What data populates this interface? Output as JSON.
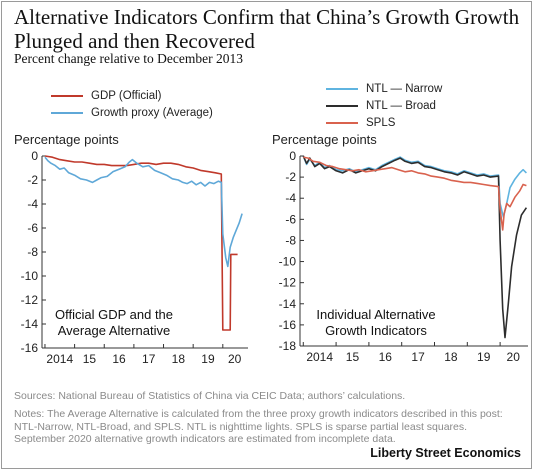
{
  "title": "Alternative Indicators Confirm that China’s Growth Growth Plunged and then Recovered",
  "subtitle": "Percent change relative to December 2013",
  "sources": "Sources: National Bureau of Statistics of China via CEIC Data; authors’ calculations.",
  "notes": "Notes: The Average Alternative is calculated from the three proxy growth indicators described in this post: NTL-Narrow, NTL-Broad, and SPLS. NTL is nighttime lights. SPLS is sparse partial least squares. September 2020 alternative growth indicators are estimated from incomplete data.",
  "brand": "Liberty Street Economics",
  "colors": {
    "gdp": "#c0392b",
    "proxy": "#5fa8d8",
    "ntl_narrow": "#5fb4e0",
    "ntl_broad": "#2d2d2d",
    "spls": "#d9624e"
  },
  "chart_data": [
    {
      "type": "line",
      "ylabel": "Percentage points",
      "annotation": [
        "Official GDP and the",
        "Average Alternative"
      ],
      "ylim": [
        -16,
        0
      ],
      "yticks": [
        0,
        -2,
        -4,
        -6,
        -8,
        -10,
        -12,
        -14,
        -16
      ],
      "xlim": [
        2013.9,
        2020.85
      ],
      "xticks": [
        {
          "label": "2014",
          "x": 2014.5
        },
        {
          "label": "15",
          "x": 2015.5
        },
        {
          "label": "16",
          "x": 2016.5
        },
        {
          "label": "17",
          "x": 2017.5
        },
        {
          "label": "18",
          "x": 2018.5
        },
        {
          "label": "19",
          "x": 2019.5
        },
        {
          "label": "20",
          "x": 2020.4
        }
      ],
      "grid": false,
      "legend_position": "top",
      "series": [
        {
          "name": "GDP (Official)",
          "color_key": "gdp",
          "points": [
            [
              2014.0,
              0.0
            ],
            [
              2014.25,
              -0.1
            ],
            [
              2014.5,
              -0.3
            ],
            [
              2014.75,
              -0.4
            ],
            [
              2015.0,
              -0.5
            ],
            [
              2015.25,
              -0.5
            ],
            [
              2015.5,
              -0.6
            ],
            [
              2015.75,
              -0.7
            ],
            [
              2016.0,
              -0.7
            ],
            [
              2016.25,
              -0.8
            ],
            [
              2016.5,
              -0.8
            ],
            [
              2016.75,
              -0.8
            ],
            [
              2017.0,
              -0.7
            ],
            [
              2017.25,
              -0.6
            ],
            [
              2017.5,
              -0.6
            ],
            [
              2017.75,
              -0.7
            ],
            [
              2018.0,
              -0.6
            ],
            [
              2018.25,
              -0.6
            ],
            [
              2018.5,
              -0.7
            ],
            [
              2018.75,
              -0.9
            ],
            [
              2019.0,
              -1.0
            ],
            [
              2019.25,
              -1.2
            ],
            [
              2019.5,
              -1.3
            ],
            [
              2019.75,
              -1.4
            ],
            [
              2019.95,
              -1.5
            ],
            [
              2020.0,
              -14.5
            ],
            [
              2020.25,
              -14.5
            ],
            [
              2020.27,
              -8.2
            ],
            [
              2020.5,
              -8.2
            ]
          ]
        },
        {
          "name": "Growth proxy (Average)",
          "color_key": "proxy",
          "points": [
            [
              2014.0,
              -0.1
            ],
            [
              2014.1,
              -0.4
            ],
            [
              2014.2,
              -0.6
            ],
            [
              2014.35,
              -0.8
            ],
            [
              2014.5,
              -1.1
            ],
            [
              2014.65,
              -1.0
            ],
            [
              2014.8,
              -1.4
            ],
            [
              2015.0,
              -1.6
            ],
            [
              2015.2,
              -1.9
            ],
            [
              2015.4,
              -2.0
            ],
            [
              2015.6,
              -2.2
            ],
            [
              2015.75,
              -2.0
            ],
            [
              2015.9,
              -1.8
            ],
            [
              2016.1,
              -1.7
            ],
            [
              2016.3,
              -1.3
            ],
            [
              2016.5,
              -1.1
            ],
            [
              2016.7,
              -0.9
            ],
            [
              2016.85,
              -0.5
            ],
            [
              2016.95,
              -0.3
            ],
            [
              2017.1,
              -0.6
            ],
            [
              2017.3,
              -0.9
            ],
            [
              2017.5,
              -0.8
            ],
            [
              2017.7,
              -1.2
            ],
            [
              2017.9,
              -1.4
            ],
            [
              2018.1,
              -1.6
            ],
            [
              2018.3,
              -1.9
            ],
            [
              2018.5,
              -2.0
            ],
            [
              2018.65,
              -2.2
            ],
            [
              2018.8,
              -2.3
            ],
            [
              2018.95,
              -2.1
            ],
            [
              2019.1,
              -2.4
            ],
            [
              2019.25,
              -2.2
            ],
            [
              2019.4,
              -2.5
            ],
            [
              2019.55,
              -2.2
            ],
            [
              2019.7,
              -2.3
            ],
            [
              2019.85,
              -2.1
            ],
            [
              2019.95,
              -2.2
            ],
            [
              2020.0,
              -6.5
            ],
            [
              2020.1,
              -8.5
            ],
            [
              2020.17,
              -9.2
            ],
            [
              2020.25,
              -7.6
            ],
            [
              2020.35,
              -6.8
            ],
            [
              2020.45,
              -6.2
            ],
            [
              2020.55,
              -5.6
            ],
            [
              2020.65,
              -4.8
            ]
          ]
        }
      ]
    },
    {
      "type": "line",
      "ylabel": "Percentage points",
      "annotation": [
        "Individual Alternative",
        "Growth Indicators"
      ],
      "ylim": [
        -18,
        0
      ],
      "yticks": [
        0,
        -2,
        -4,
        -6,
        -8,
        -10,
        -12,
        -14,
        -16,
        -18
      ],
      "xlim": [
        2013.9,
        2020.85
      ],
      "xticks": [
        {
          "label": "2014",
          "x": 2014.5
        },
        {
          "label": "15",
          "x": 2015.5
        },
        {
          "label": "16",
          "x": 2016.5
        },
        {
          "label": "17",
          "x": 2017.5
        },
        {
          "label": "18",
          "x": 2018.5
        },
        {
          "label": "19",
          "x": 2019.5
        },
        {
          "label": "20",
          "x": 2020.4
        }
      ],
      "grid": false,
      "legend_position": "top-right",
      "series": [
        {
          "name": "NTL — Narrow",
          "color_key": "ntl_narrow",
          "points": [
            [
              2014.0,
              0.0
            ],
            [
              2014.1,
              -0.8
            ],
            [
              2014.2,
              -0.3
            ],
            [
              2014.35,
              -0.9
            ],
            [
              2014.5,
              -0.6
            ],
            [
              2014.65,
              -1.1
            ],
            [
              2014.8,
              -0.9
            ],
            [
              2015.0,
              -1.3
            ],
            [
              2015.2,
              -1.4
            ],
            [
              2015.4,
              -1.2
            ],
            [
              2015.6,
              -1.5
            ],
            [
              2015.8,
              -1.3
            ],
            [
              2016.0,
              -1.1
            ],
            [
              2016.2,
              -1.3
            ],
            [
              2016.4,
              -0.9
            ],
            [
              2016.6,
              -0.6
            ],
            [
              2016.8,
              -0.3
            ],
            [
              2016.95,
              -0.1
            ],
            [
              2017.1,
              -0.4
            ],
            [
              2017.3,
              -0.6
            ],
            [
              2017.5,
              -0.5
            ],
            [
              2017.7,
              -0.9
            ],
            [
              2017.9,
              -1.0
            ],
            [
              2018.1,
              -1.2
            ],
            [
              2018.3,
              -1.4
            ],
            [
              2018.5,
              -1.5
            ],
            [
              2018.7,
              -1.7
            ],
            [
              2018.9,
              -1.4
            ],
            [
              2019.1,
              -1.6
            ],
            [
              2019.3,
              -1.8
            ],
            [
              2019.5,
              -1.7
            ],
            [
              2019.7,
              -1.9
            ],
            [
              2019.95,
              -1.8
            ],
            [
              2020.0,
              -4.5
            ],
            [
              2020.1,
              -5.8
            ],
            [
              2020.2,
              -4.5
            ],
            [
              2020.3,
              -3.0
            ],
            [
              2020.45,
              -2.2
            ],
            [
              2020.6,
              -1.6
            ],
            [
              2020.7,
              -1.3
            ],
            [
              2020.8,
              -1.6
            ]
          ]
        },
        {
          "name": "NTL — Broad",
          "color_key": "ntl_broad",
          "points": [
            [
              2014.0,
              0.0
            ],
            [
              2014.1,
              -0.7
            ],
            [
              2014.2,
              -0.2
            ],
            [
              2014.35,
              -1.0
            ],
            [
              2014.5,
              -0.7
            ],
            [
              2014.65,
              -1.2
            ],
            [
              2014.8,
              -1.0
            ],
            [
              2015.0,
              -1.4
            ],
            [
              2015.2,
              -1.6
            ],
            [
              2015.4,
              -1.3
            ],
            [
              2015.6,
              -1.6
            ],
            [
              2015.8,
              -1.4
            ],
            [
              2016.0,
              -1.2
            ],
            [
              2016.2,
              -1.4
            ],
            [
              2016.4,
              -1.0
            ],
            [
              2016.6,
              -0.7
            ],
            [
              2016.8,
              -0.4
            ],
            [
              2016.95,
              -0.2
            ],
            [
              2017.1,
              -0.5
            ],
            [
              2017.3,
              -0.7
            ],
            [
              2017.5,
              -0.6
            ],
            [
              2017.7,
              -1.0
            ],
            [
              2017.9,
              -1.1
            ],
            [
              2018.1,
              -1.3
            ],
            [
              2018.3,
              -1.5
            ],
            [
              2018.5,
              -1.6
            ],
            [
              2018.7,
              -1.8
            ],
            [
              2018.9,
              -1.5
            ],
            [
              2019.1,
              -1.7
            ],
            [
              2019.3,
              -1.9
            ],
            [
              2019.5,
              -1.8
            ],
            [
              2019.7,
              -2.0
            ],
            [
              2019.95,
              -1.9
            ],
            [
              2020.0,
              -8.0
            ],
            [
              2020.08,
              -14.5
            ],
            [
              2020.15,
              -17.2
            ],
            [
              2020.25,
              -14.0
            ],
            [
              2020.35,
              -10.5
            ],
            [
              2020.5,
              -7.5
            ],
            [
              2020.65,
              -5.6
            ],
            [
              2020.8,
              -4.9
            ]
          ]
        },
        {
          "name": "SPLS",
          "color_key": "spls",
          "points": [
            [
              2014.0,
              -0.1
            ],
            [
              2014.15,
              -0.2
            ],
            [
              2014.3,
              -0.5
            ],
            [
              2014.5,
              -0.6
            ],
            [
              2014.7,
              -0.9
            ],
            [
              2014.9,
              -1.0
            ],
            [
              2015.1,
              -1.2
            ],
            [
              2015.3,
              -1.3
            ],
            [
              2015.5,
              -1.4
            ],
            [
              2015.7,
              -1.3
            ],
            [
              2015.9,
              -1.5
            ],
            [
              2016.1,
              -1.4
            ],
            [
              2016.3,
              -1.3
            ],
            [
              2016.5,
              -1.2
            ],
            [
              2016.7,
              -1.1
            ],
            [
              2016.9,
              -1.3
            ],
            [
              2017.1,
              -1.5
            ],
            [
              2017.3,
              -1.4
            ],
            [
              2017.5,
              -1.6
            ],
            [
              2017.7,
              -1.7
            ],
            [
              2017.9,
              -1.9
            ],
            [
              2018.1,
              -2.0
            ],
            [
              2018.3,
              -2.1
            ],
            [
              2018.5,
              -2.3
            ],
            [
              2018.7,
              -2.4
            ],
            [
              2018.9,
              -2.5
            ],
            [
              2019.1,
              -2.5
            ],
            [
              2019.3,
              -2.6
            ],
            [
              2019.5,
              -2.7
            ],
            [
              2019.7,
              -2.8
            ],
            [
              2019.95,
              -2.9
            ],
            [
              2020.0,
              -5.0
            ],
            [
              2020.08,
              -7.0
            ],
            [
              2020.12,
              -5.5
            ],
            [
              2020.2,
              -4.5
            ],
            [
              2020.3,
              -4.8
            ],
            [
              2020.45,
              -3.9
            ],
            [
              2020.6,
              -3.3
            ],
            [
              2020.7,
              -2.7
            ],
            [
              2020.8,
              -2.8
            ]
          ]
        }
      ]
    }
  ]
}
